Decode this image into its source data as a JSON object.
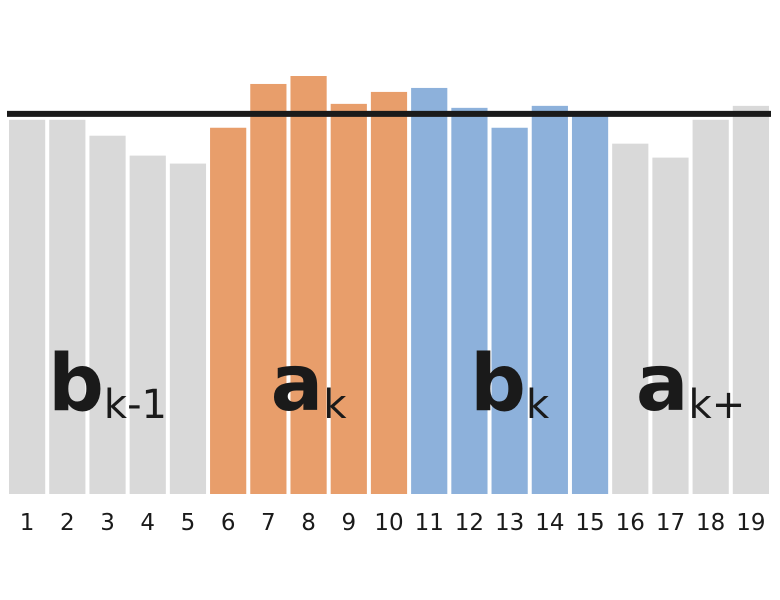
{
  "chart_data": {
    "type": "bar",
    "categories": [
      "1",
      "2",
      "3",
      "4",
      "5",
      "6",
      "7",
      "8",
      "9",
      "10",
      "11",
      "12",
      "13",
      "14",
      "15",
      "16",
      "17",
      "18",
      "19"
    ],
    "values": [
      94,
      94,
      90,
      85,
      83,
      92,
      103,
      105,
      98,
      101,
      102,
      97,
      92,
      97.5,
      95,
      88,
      84.5,
      94,
      97.5
    ],
    "bar_groups": [
      0,
      0,
      0,
      0,
      0,
      1,
      1,
      1,
      1,
      1,
      2,
      2,
      2,
      2,
      2,
      0,
      0,
      0,
      0
    ],
    "group_colors": [
      "#d9d9d9",
      "#e89e6b",
      "#8db1db"
    ],
    "reference_line": 95.5,
    "reference_line_color": "#1a1a1a",
    "ylim": [
      0,
      105
    ],
    "title": "",
    "xlabel": "",
    "ylabel": "",
    "grid": false,
    "group_labels": [
      {
        "letter": "b",
        "subscript": "k-1",
        "first_bar": 0,
        "last_bar": 4
      },
      {
        "letter": "a",
        "subscript": "k",
        "first_bar": 5,
        "last_bar": 9
      },
      {
        "letter": "b",
        "subscript": "k",
        "first_bar": 10,
        "last_bar": 14
      },
      {
        "letter": "a",
        "subscript": "k+",
        "first_bar": 15,
        "last_bar": 18
      }
    ]
  }
}
